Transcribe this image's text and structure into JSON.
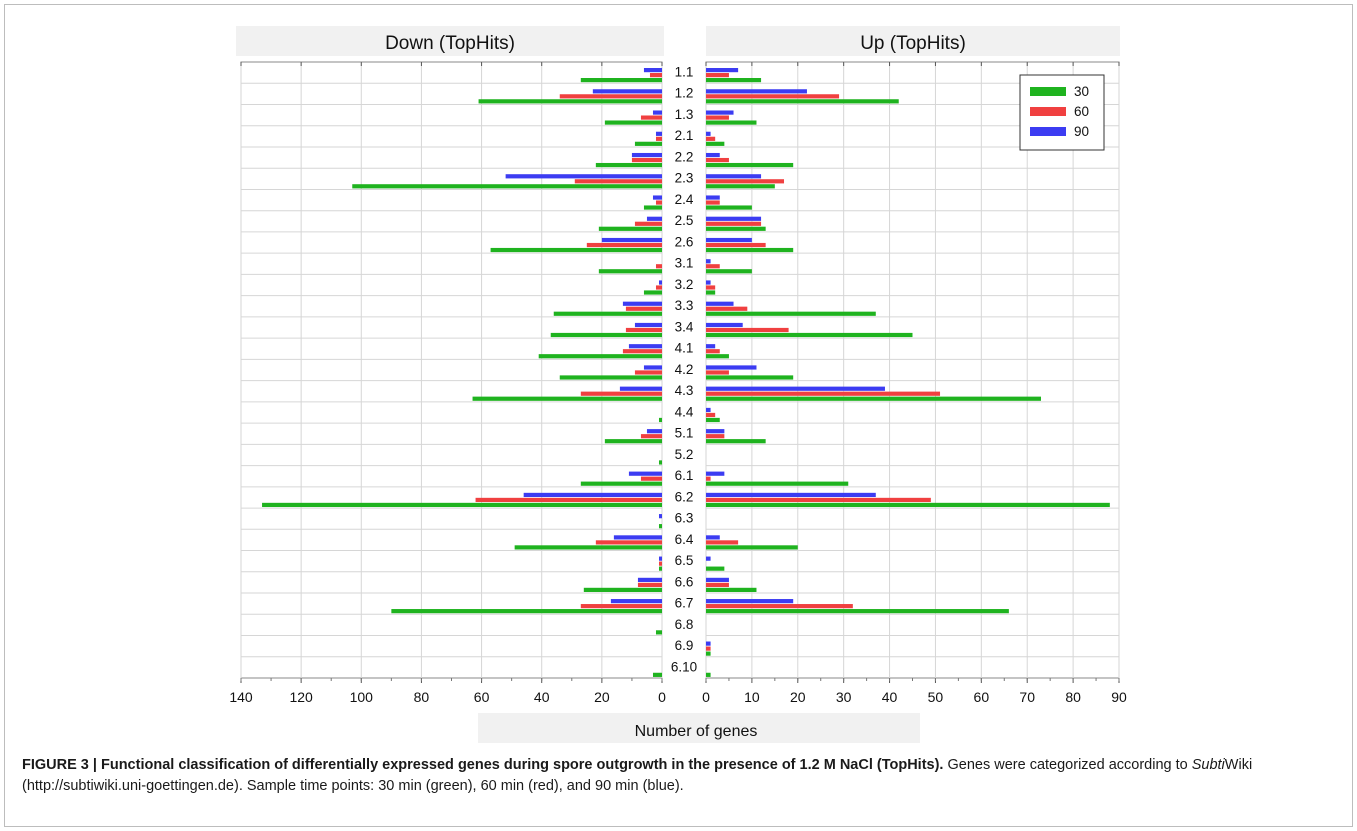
{
  "chart_data": {
    "type": "bar",
    "orientation": "horizontal",
    "categories": [
      "1.1",
      "1.2",
      "1.3",
      "2.1",
      "2.2",
      "2.3",
      "2.4",
      "2.5",
      "2.6",
      "3.1",
      "3.2",
      "3.3",
      "3.4",
      "4.1",
      "4.2",
      "4.3",
      "4.4",
      "5.1",
      "5.2",
      "6.1",
      "6.2",
      "6.3",
      "6.4",
      "6.5",
      "6.6",
      "6.7",
      "6.8",
      "6.9",
      "6.10"
    ],
    "panels": [
      {
        "title": "Down (TopHits)",
        "xlim": [
          140,
          0
        ],
        "ticks": [
          140,
          120,
          100,
          80,
          60,
          40,
          20,
          0
        ],
        "series": [
          {
            "name": "30",
            "color": "#1fb31f",
            "values": [
              27,
              61,
              19,
              9,
              22,
              103,
              6,
              21,
              57,
              21,
              6,
              36,
              37,
              41,
              34,
              63,
              1,
              19,
              1,
              27,
              133,
              1,
              49,
              1,
              26,
              90,
              2,
              0,
              3
            ]
          },
          {
            "name": "60",
            "color": "#f04040",
            "values": [
              4,
              34,
              7,
              2,
              10,
              29,
              2,
              9,
              25,
              2,
              2,
              12,
              12,
              13,
              9,
              27,
              0,
              7,
              0,
              7,
              62,
              0,
              22,
              1,
              8,
              27,
              0,
              0,
              0
            ]
          },
          {
            "name": "90",
            "color": "#3c3cf2",
            "values": [
              6,
              23,
              3,
              2,
              10,
              52,
              3,
              5,
              20,
              0,
              1,
              13,
              9,
              11,
              6,
              14,
              0,
              5,
              0,
              11,
              46,
              1,
              16,
              1,
              8,
              17,
              0,
              0,
              0
            ]
          }
        ]
      },
      {
        "title": "Up (TopHits)",
        "xlim": [
          0,
          90
        ],
        "ticks": [
          0,
          10,
          20,
          30,
          40,
          50,
          60,
          70,
          80,
          90
        ],
        "series": [
          {
            "name": "30",
            "color": "#1fb31f",
            "values": [
              12,
              42,
              11,
              4,
              19,
              15,
              10,
              13,
              19,
              10,
              2,
              37,
              45,
              5,
              19,
              73,
              3,
              13,
              0,
              31,
              88,
              0,
              20,
              4,
              11,
              66,
              0,
              1,
              1
            ]
          },
          {
            "name": "60",
            "color": "#f04040",
            "values": [
              5,
              29,
              5,
              2,
              5,
              17,
              3,
              12,
              13,
              3,
              2,
              9,
              18,
              3,
              5,
              51,
              2,
              4,
              0,
              1,
              49,
              0,
              7,
              0,
              5,
              32,
              0,
              1,
              0
            ]
          },
          {
            "name": "90",
            "color": "#3c3cf2",
            "values": [
              7,
              22,
              6,
              1,
              3,
              12,
              3,
              12,
              10,
              1,
              1,
              6,
              8,
              2,
              11,
              39,
              1,
              4,
              0,
              4,
              37,
              0,
              3,
              1,
              5,
              19,
              0,
              1,
              0
            ]
          }
        ]
      }
    ],
    "xlabel": "Number of genes",
    "legend": {
      "placement": "top-right",
      "entries": [
        "30",
        "60",
        "90"
      ]
    },
    "grid": true
  },
  "caption": {
    "bold": "FIGURE 3 | Functional classification of differentially expressed genes during spore outgrowth in the presence of 1.2 M NaCl (TopHits).",
    "text1": " Genes were categorized according to ",
    "italic": "Subti",
    "text2": "Wiki (http://subtiwiki.uni-goettingen.de). Sample time points: 30 min (green), 60 min (red), and 90 min (blue)."
  }
}
